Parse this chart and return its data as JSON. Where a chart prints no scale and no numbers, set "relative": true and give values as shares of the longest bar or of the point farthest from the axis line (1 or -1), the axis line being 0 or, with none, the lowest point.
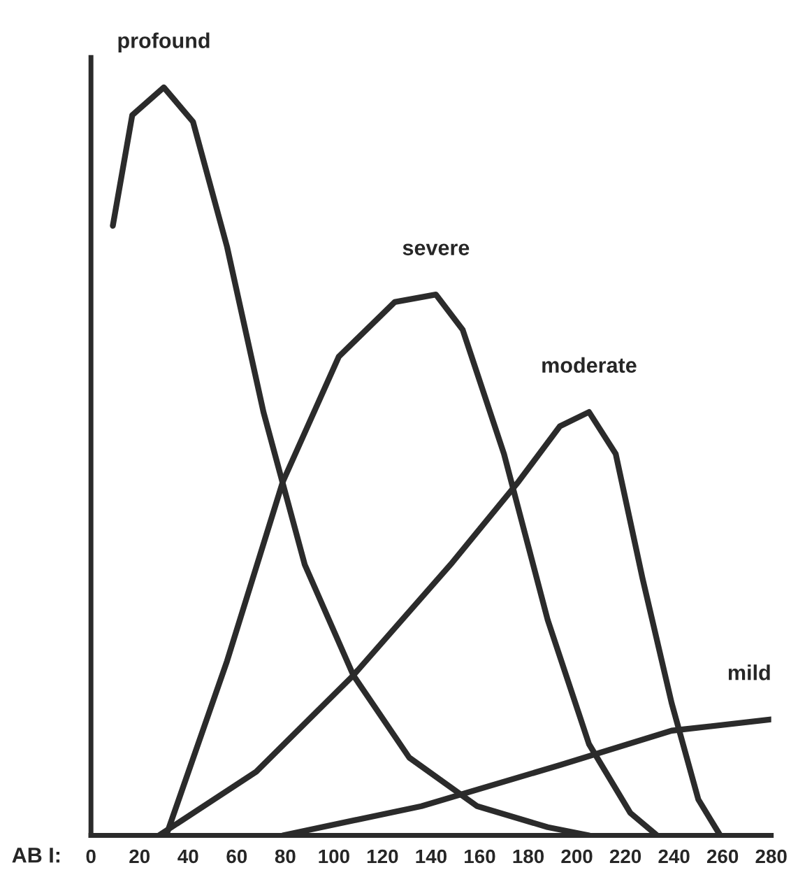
{
  "chart_data": {
    "type": "line",
    "relative": true,
    "xlabel": "AB I:",
    "xlim": [
      0,
      280
    ],
    "xticks": [
      0,
      20,
      40,
      60,
      80,
      100,
      120,
      140,
      160,
      180,
      200,
      220,
      240,
      260,
      280
    ],
    "grid": false,
    "legend": false,
    "marker": "none",
    "line_style": "solid",
    "series": [
      {
        "name": "profound",
        "color": "#2b2b2b",
        "x": [
          9,
          17,
          30,
          42,
          56,
          71,
          88,
          108,
          131,
          159,
          188,
          205
        ],
        "values": [
          0.815,
          0.963,
          1.0,
          0.954,
          0.787,
          0.566,
          0.362,
          0.214,
          0.104,
          0.039,
          0.011,
          0
        ]
      },
      {
        "name": "severe",
        "color": "#2b2b2b",
        "x": [
          31,
          56,
          79,
          102,
          125,
          142,
          153,
          170,
          188,
          205,
          222,
          233
        ],
        "values": [
          0,
          0.233,
          0.473,
          0.64,
          0.713,
          0.723,
          0.676,
          0.51,
          0.288,
          0.122,
          0.03,
          0
        ]
      },
      {
        "name": "moderate",
        "color": "#2b2b2b",
        "x": [
          28,
          68,
          108,
          148,
          176,
          193,
          205,
          216,
          227,
          239,
          250,
          259
        ],
        "values": [
          0,
          0.085,
          0.214,
          0.362,
          0.473,
          0.547,
          0.566,
          0.51,
          0.344,
          0.177,
          0.048,
          0
        ]
      },
      {
        "name": "mild",
        "color": "#2b2b2b",
        "x": [
          79,
          136,
          193,
          239,
          280
        ],
        "values": [
          0,
          0.039,
          0.094,
          0.14,
          0.155
        ]
      }
    ]
  }
}
